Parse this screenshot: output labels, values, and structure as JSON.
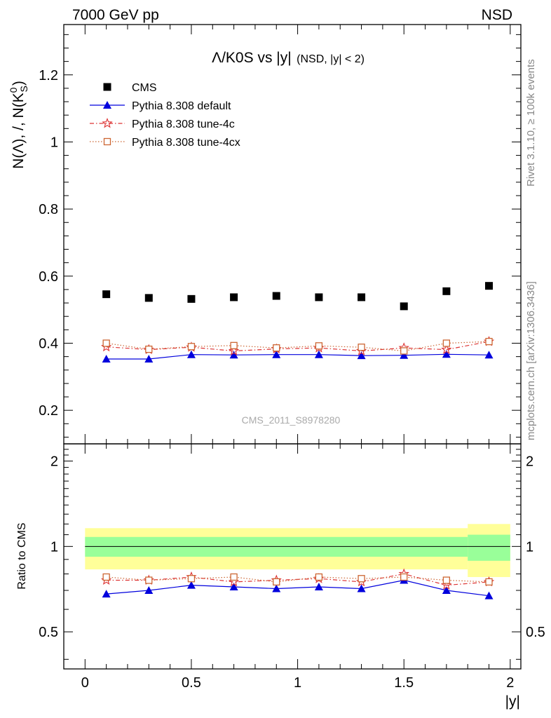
{
  "header": {
    "left": "7000 GeV pp",
    "right": "NSD"
  },
  "side_labels": {
    "rivet": "Rivet 3.1.10, ≥ 100k events",
    "mcplots": "mcplots.cern.ch [arXiv:1306.3436]"
  },
  "watermark": "CMS_2011_S8978280",
  "chart_data": [
    {
      "type": "scatter",
      "title_main": "Λ/K0S vs |y|",
      "title_sub": "(NSD, |y| < 2)",
      "ylabel": "N(Λ), /, N(K₀ˢ)",
      "xlim": [
        -0.1,
        2.05
      ],
      "ylim": [
        0.1,
        1.35
      ],
      "yticks": [
        0.2,
        0.4,
        0.6,
        0.8,
        1,
        1.2
      ],
      "ytick_labels": [
        "0.2",
        "0.4",
        "0.6",
        "0.8",
        "1",
        "1.2"
      ],
      "legend_position": "top-left",
      "x": [
        0.1,
        0.3,
        0.5,
        0.7,
        0.9,
        1.1,
        1.3,
        1.5,
        1.7,
        1.9
      ],
      "series": [
        {
          "name": "CMS",
          "color": "#000000",
          "marker": "square",
          "line": "none",
          "values": [
            0.546,
            0.535,
            0.532,
            0.537,
            0.541,
            0.537,
            0.537,
            0.51,
            0.555,
            0.571
          ]
        },
        {
          "name": "Pythia 8.308 default",
          "color": "#0000dd",
          "marker": "triangle",
          "line": "solid",
          "values": [
            0.353,
            0.353,
            0.366,
            0.365,
            0.366,
            0.366,
            0.363,
            0.364,
            0.367,
            0.365
          ]
        },
        {
          "name": "Pythia 8.308 tune-4c",
          "color": "#dd3333",
          "marker": "star",
          "line": "dashdot",
          "values": [
            0.389,
            0.381,
            0.388,
            0.377,
            0.383,
            0.386,
            0.377,
            0.386,
            0.381,
            0.405
          ]
        },
        {
          "name": "Pythia 8.308 tune-4cx",
          "color": "#cc6633",
          "marker": "open-square",
          "line": "dotted",
          "values": [
            0.4,
            0.382,
            0.39,
            0.393,
            0.386,
            0.392,
            0.388,
            0.377,
            0.4,
            0.405
          ]
        }
      ]
    },
    {
      "type": "scatter",
      "ylabel": "Ratio to CMS",
      "xlabel": "|y|",
      "xlim": [
        -0.1,
        2.05
      ],
      "ylim": [
        0.37,
        2.3
      ],
      "xticks": [
        0,
        0.5,
        1,
        1.5,
        2
      ],
      "xtick_labels": [
        "0",
        "0.5",
        "1",
        "1.5",
        "2"
      ],
      "yticks": [
        0.5,
        1,
        2
      ],
      "ytick_labels": [
        "0.5",
        "1",
        "2"
      ],
      "reference_line": 1,
      "bands": [
        {
          "x0": 0.0,
          "x1": 1.8,
          "inner": [
            0.92,
            1.08
          ],
          "outer": [
            0.83,
            1.16
          ]
        },
        {
          "x0": 1.8,
          "x1": 2.0,
          "inner": [
            0.89,
            1.1
          ],
          "outer": [
            0.78,
            1.2
          ]
        }
      ],
      "x": [
        0.1,
        0.3,
        0.5,
        0.7,
        0.9,
        1.1,
        1.3,
        1.5,
        1.7,
        1.9
      ],
      "series": [
        {
          "name": "Pythia 8.308 default",
          "color": "#0000dd",
          "marker": "triangle",
          "line": "solid",
          "values": [
            0.68,
            0.7,
            0.73,
            0.72,
            0.71,
            0.72,
            0.71,
            0.76,
            0.7,
            0.67
          ]
        },
        {
          "name": "Pythia 8.308 tune-4c",
          "color": "#dd3333",
          "marker": "star",
          "line": "dashdot",
          "values": [
            0.76,
            0.76,
            0.78,
            0.75,
            0.76,
            0.77,
            0.75,
            0.8,
            0.73,
            0.75
          ]
        },
        {
          "name": "Pythia 8.308 tune-4cx",
          "color": "#cc6633",
          "marker": "open-square",
          "line": "dotted",
          "values": [
            0.78,
            0.76,
            0.77,
            0.78,
            0.75,
            0.78,
            0.77,
            0.78,
            0.76,
            0.75
          ]
        }
      ]
    }
  ]
}
